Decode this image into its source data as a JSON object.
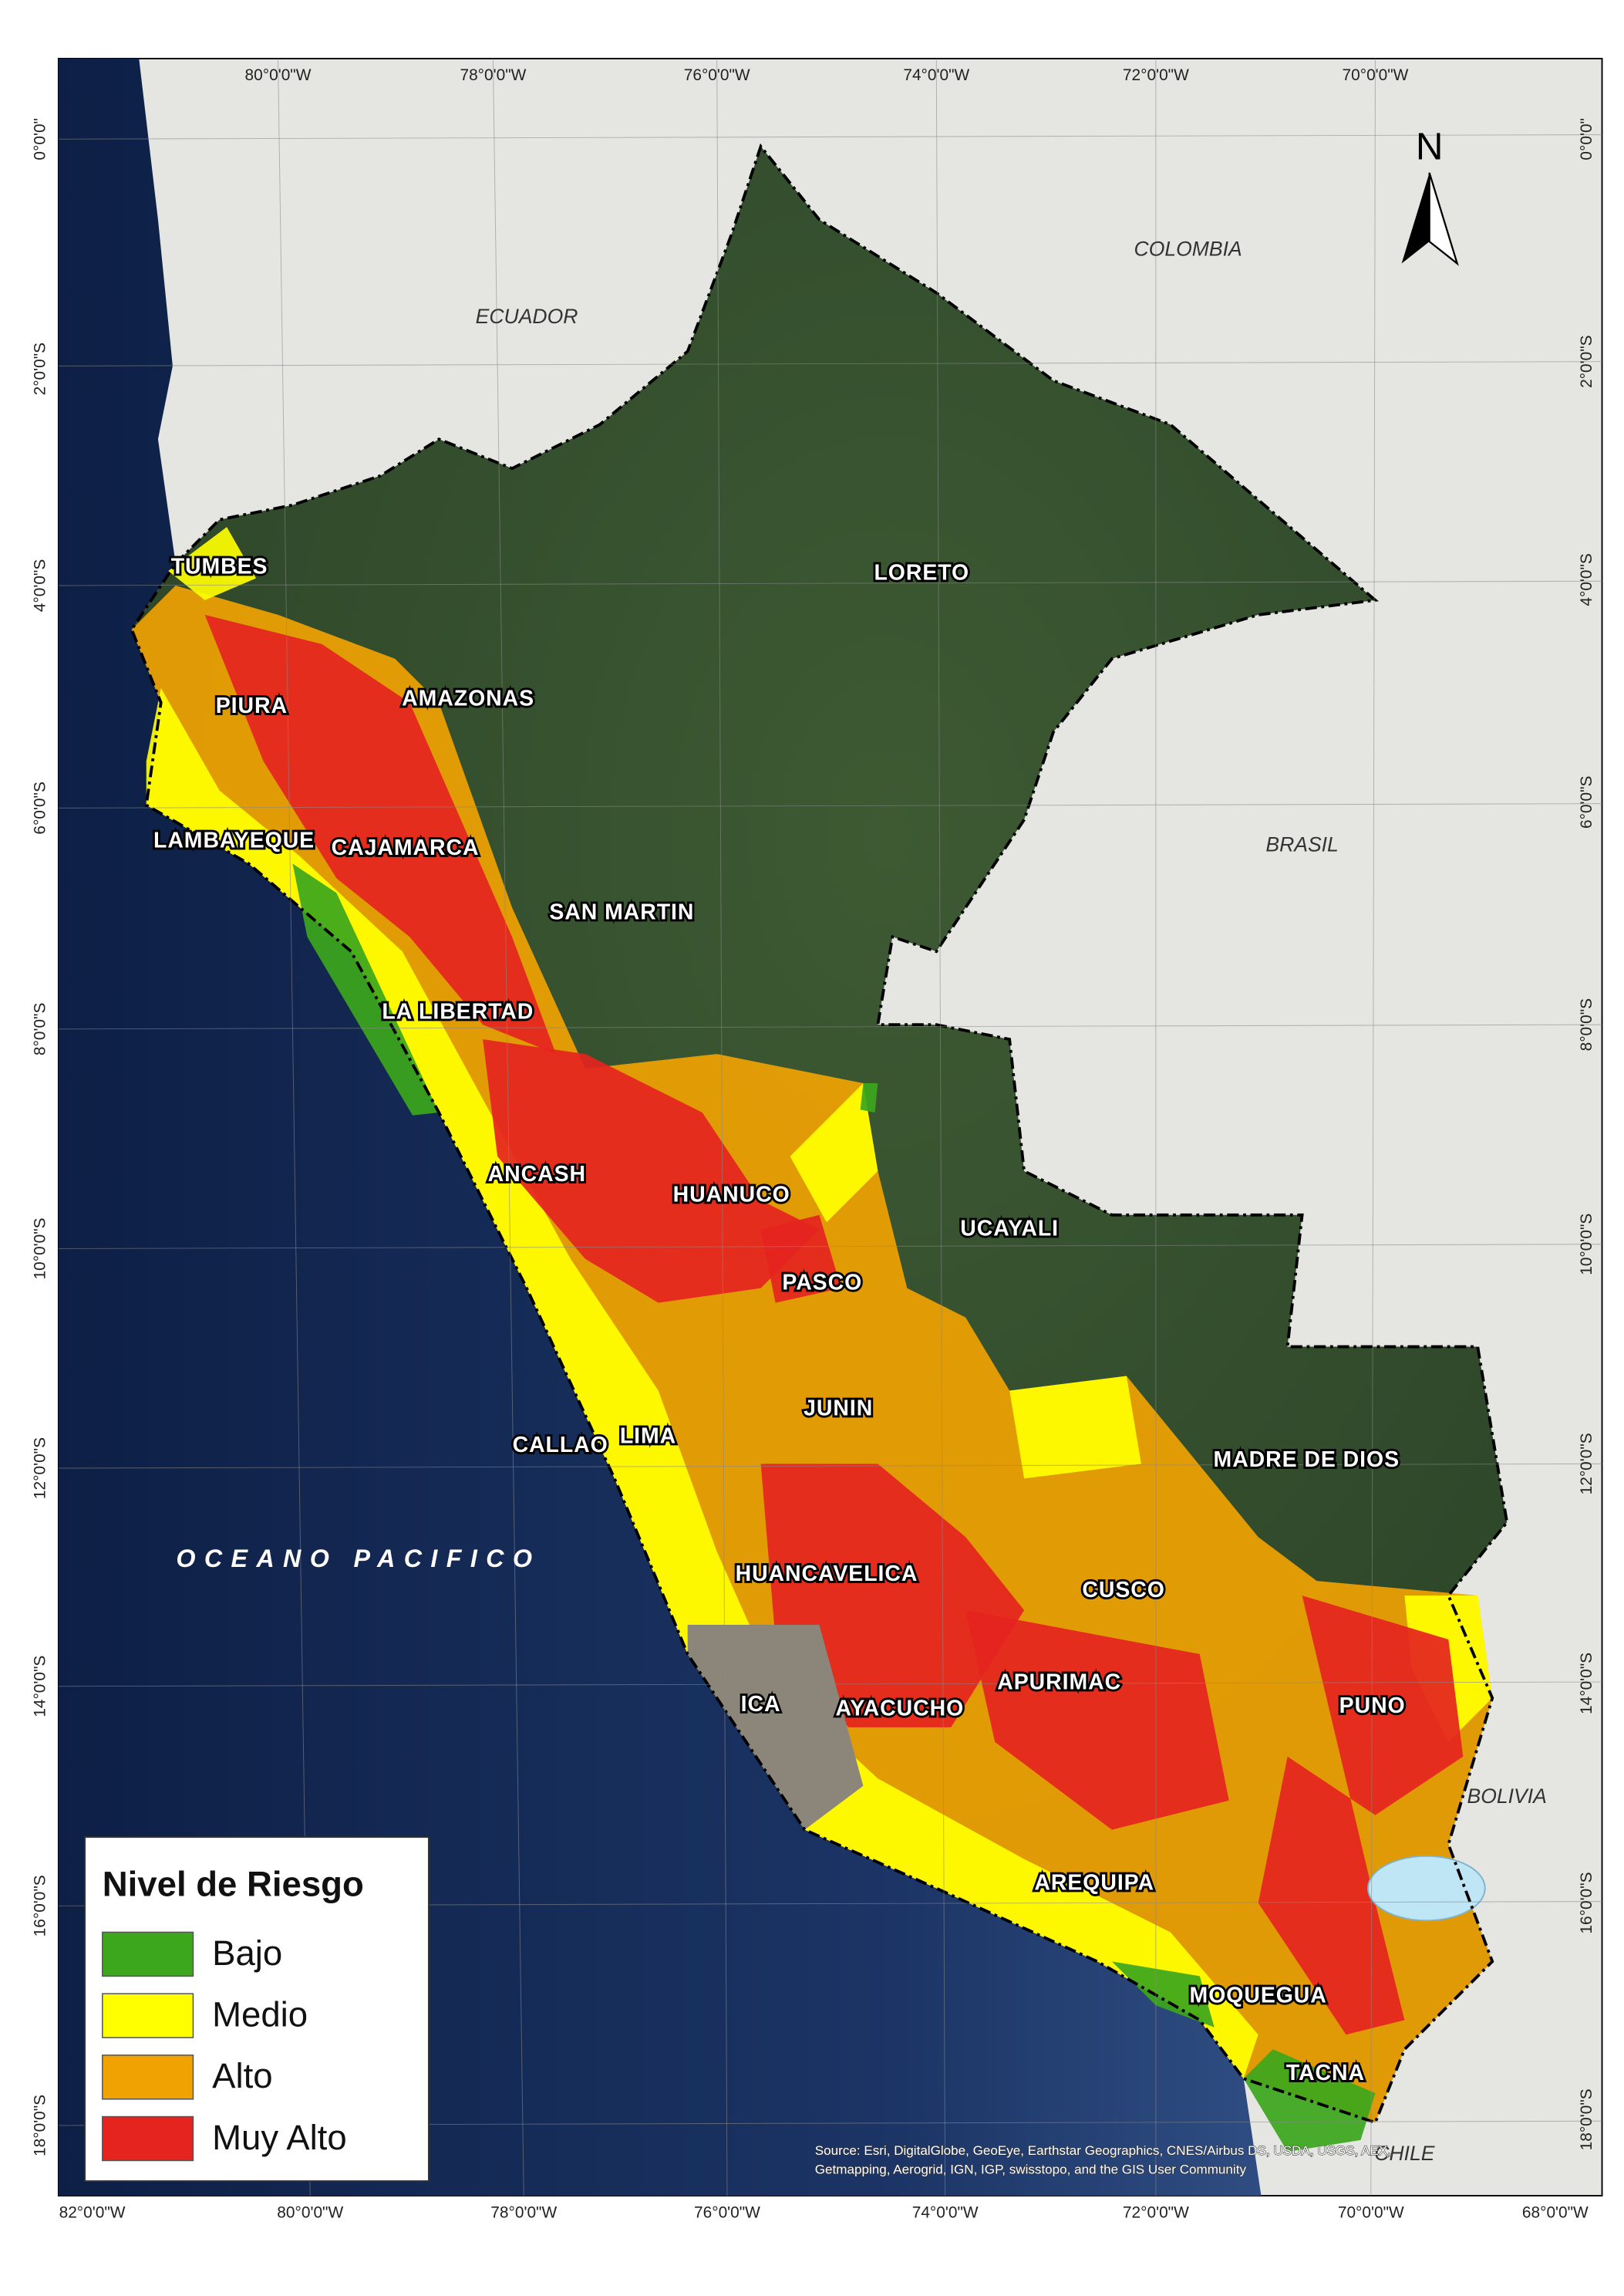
{
  "map": {
    "frame_labels": {
      "top": [
        "80°0'0\"W",
        "78°0'0\"W",
        "76°0'0\"W",
        "74°0'0\"W",
        "72°0'0\"W",
        "70°0'0\"W"
      ],
      "bottom": [
        "82°0'0\"W",
        "80°0'0\"W",
        "78°0'0\"W",
        "76°0'0\"W",
        "74°0'0\"W",
        "72°0'0\"W",
        "70°0'0\"W",
        "68°0'0\"W"
      ],
      "left": [
        "0°0'0\"",
        "2°0'0\"S",
        "4°0'0\"S",
        "6°0'0\"S",
        "8°0'0\"S",
        "10°0'0\"S",
        "12°0'0\"S",
        "14°0'0\"S",
        "16°0'0\"S",
        "18°0'0\"S"
      ],
      "right": [
        "0°0'0\"",
        "2°0'0\"S",
        "4°0'0\"S",
        "6°0'0\"S",
        "8°0'0\"S",
        "10°0'0\"S",
        "12°0'0\"S",
        "14°0'0\"S",
        "16°0'0\"S",
        "18°0'0\"S"
      ]
    },
    "countries": [
      "ECUADOR",
      "COLOMBIA",
      "BRASIL",
      "BOLIVIA",
      "CHILE"
    ],
    "ocean": "OCEANO PACIFICO",
    "departments": [
      "TUMBES",
      "PIURA",
      "AMAZONAS",
      "LAMBAYEQUE",
      "CAJAMARCA",
      "SAN MARTIN",
      "LA LIBERTAD",
      "LORETO",
      "ANCASH",
      "HUANUCO",
      "UCAYALI",
      "PASCO",
      "JUNIN",
      "CALLAO",
      "LIMA",
      "MADRE DE DIOS",
      "HUANCAVELICA",
      "CUSCO",
      "APURIMAC",
      "ICA",
      "AYACUCHO",
      "PUNO",
      "AREQUIPA",
      "MOQUEGUA",
      "TACNA"
    ],
    "north": "N",
    "legend": {
      "title": "Nivel de Riesgo",
      "items": [
        {
          "label": "Bajo",
          "color": "#3ca61c"
        },
        {
          "label": "Medio",
          "color": "#ffff00"
        },
        {
          "label": "Alto",
          "color": "#f0a202"
        },
        {
          "label": "Muy Alto",
          "color": "#e52420"
        }
      ]
    },
    "source": [
      "Source: Esri, DigitalGlobe, GeoEye, Earthstar Geographics, CNES/Airbus DS, USDA, USGS, AEX,",
      "Getmapping, Aerogrid, IGN, IGP, swisstopo, and the GIS User Community"
    ]
  }
}
